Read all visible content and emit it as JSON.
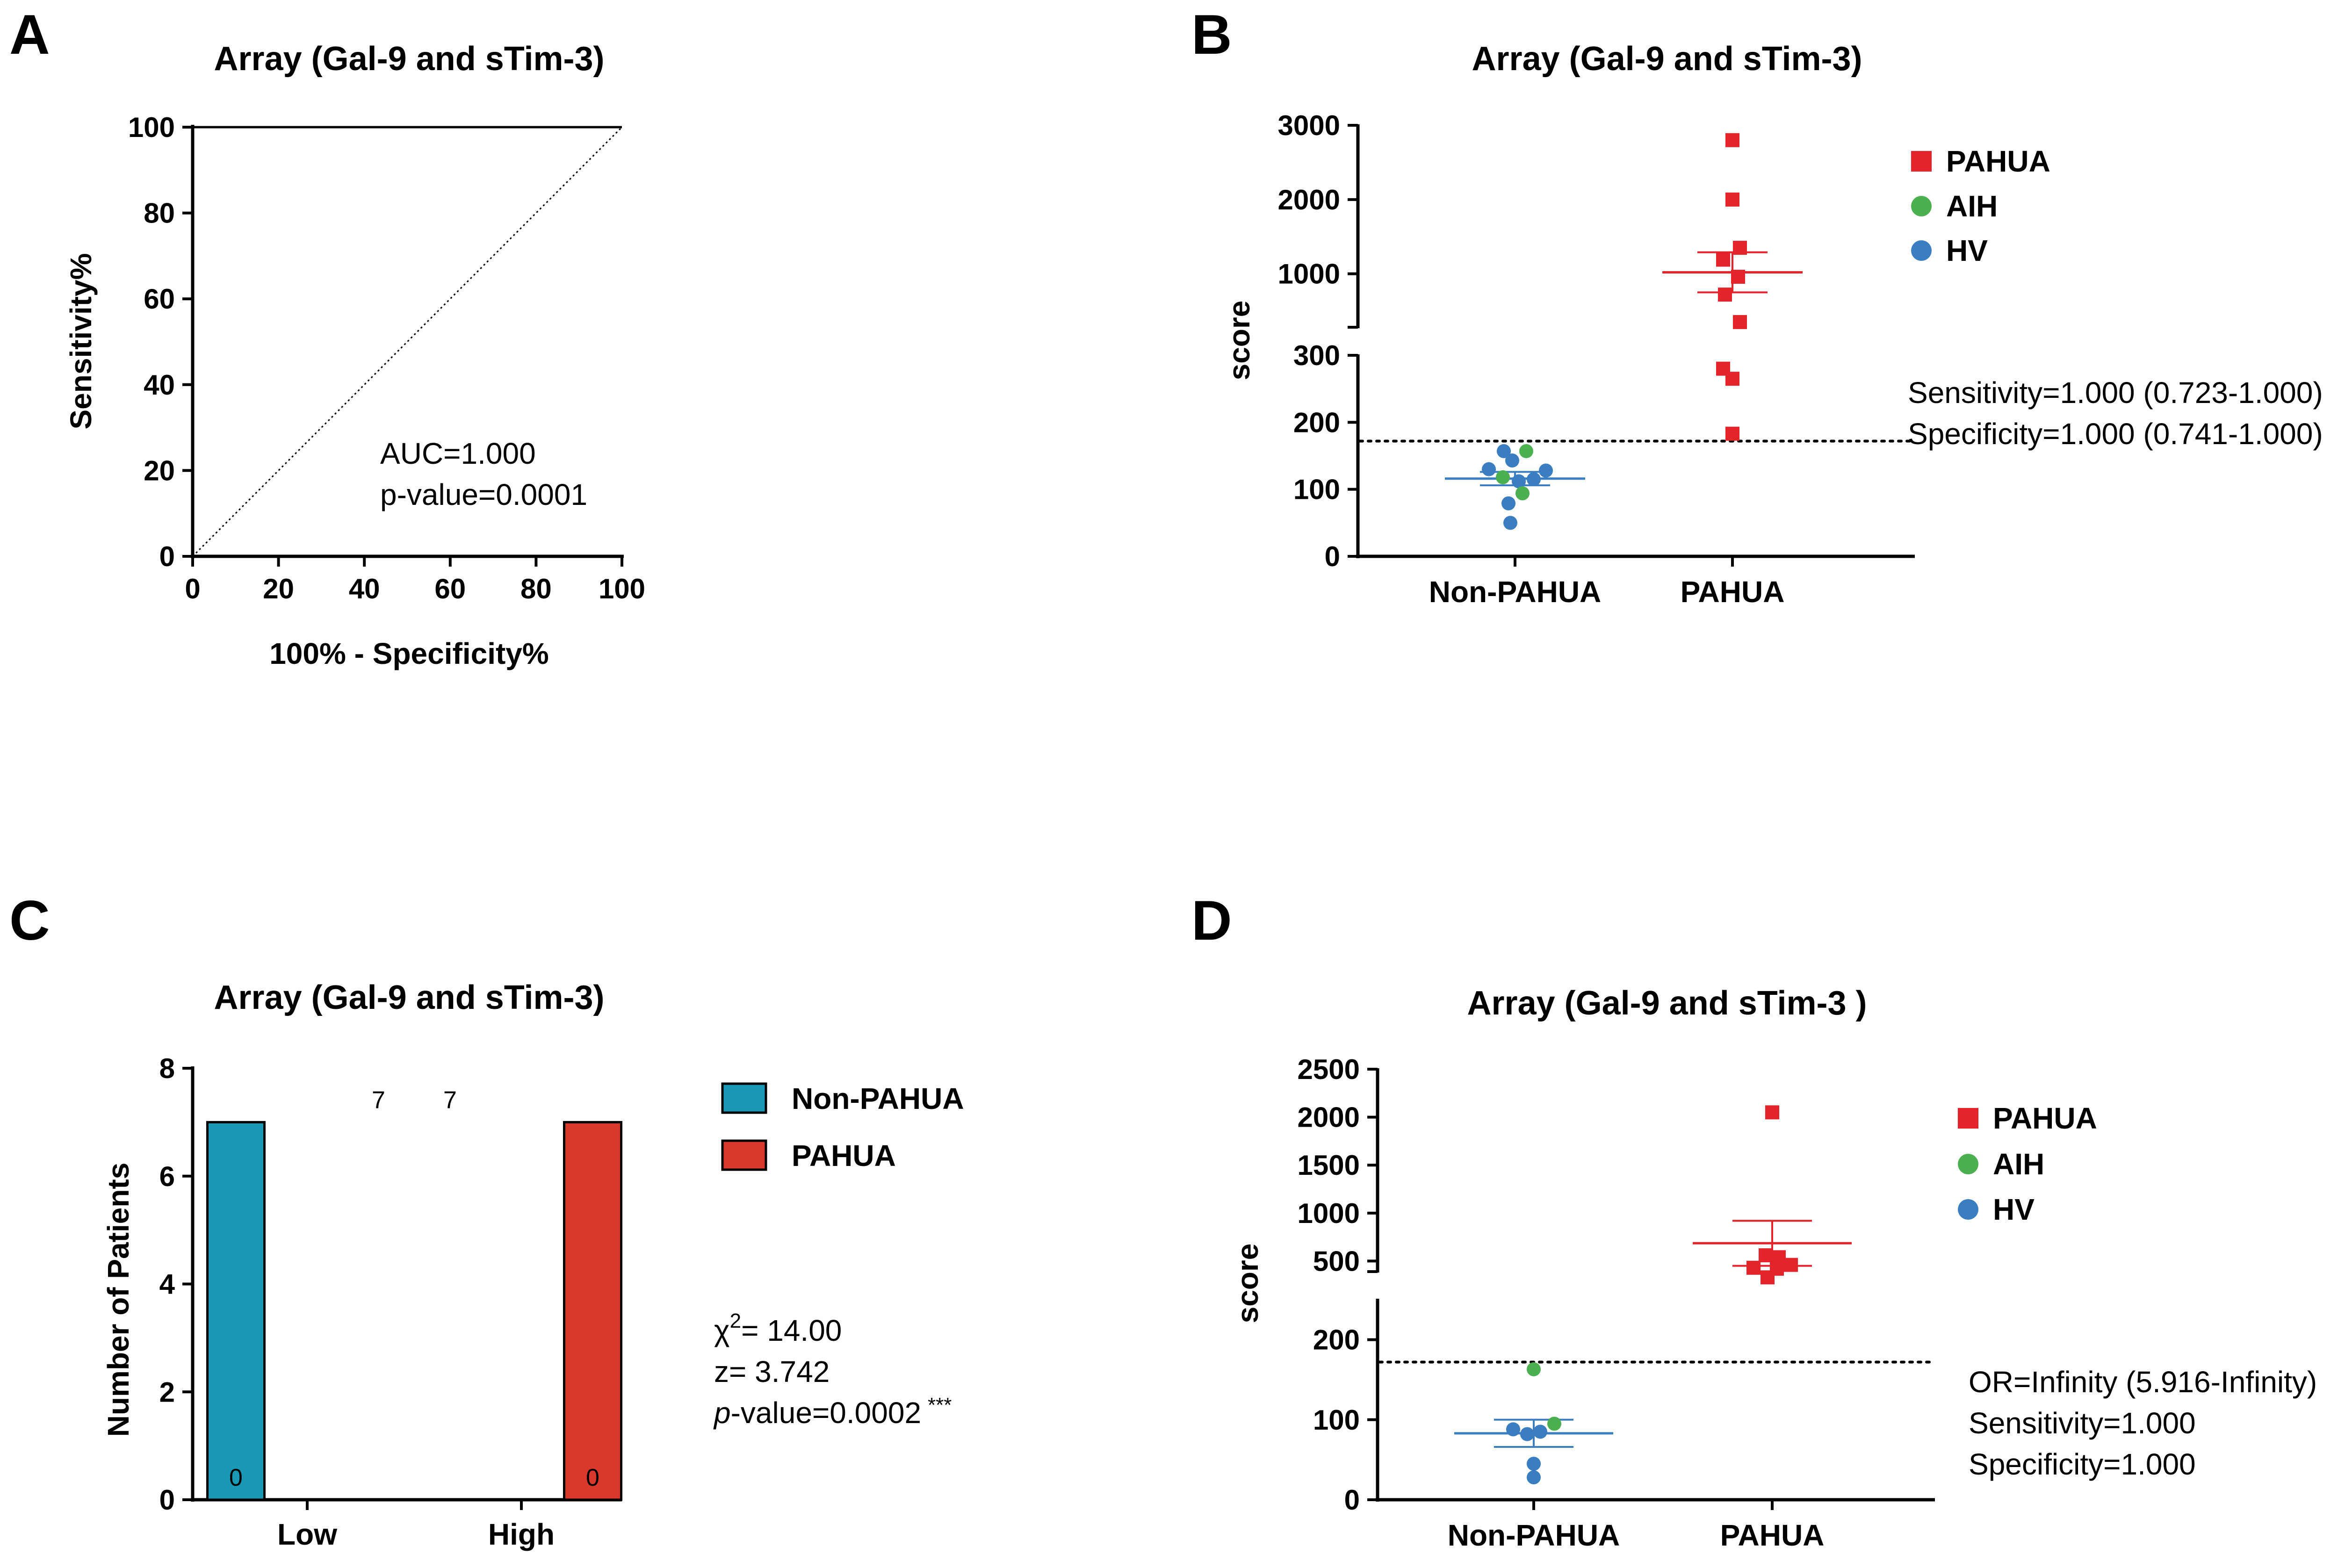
{
  "chart_data": [
    {
      "panel": "A",
      "type": "line",
      "title": "Array (Gal-9 and sTim-3)",
      "xlabel": "100% - Specificity%",
      "ylabel": "Sensitivity%",
      "xlim": [
        0,
        100
      ],
      "ylim": [
        0,
        100
      ],
      "xticks": [
        "0",
        "20",
        "40",
        "60",
        "80",
        "100"
      ],
      "yticks": [
        "0",
        "20",
        "40",
        "60",
        "80",
        "100"
      ],
      "series": [
        {
          "name": "ROC",
          "x": [
            0,
            0,
            100
          ],
          "y": [
            0,
            100,
            100
          ],
          "style": "solid"
        },
        {
          "name": "Reference",
          "x": [
            0,
            100
          ],
          "y": [
            0,
            100
          ],
          "style": "dotted"
        }
      ],
      "annotations": [
        "AUC=1.000",
        "p-value=0.0001"
      ]
    },
    {
      "panel": "B",
      "type": "scatter",
      "title": "Array (Gal-9 and sTim-3)",
      "ylabel": "score",
      "categories": [
        "Non-PAHUA",
        "PAHUA"
      ],
      "yticks_lower": [
        "0",
        "100",
        "200",
        "300"
      ],
      "yticks_upper": [
        "1000",
        "2000",
        "3000"
      ],
      "cutoff": 172,
      "legend": [
        {
          "name": "PAHUA",
          "color": "#e3242b",
          "marker": "square"
        },
        {
          "name": "AIH",
          "color": "#4caf50",
          "marker": "circle"
        },
        {
          "name": "HV",
          "color": "#3a7dc1",
          "marker": "circle"
        }
      ],
      "points": [
        {
          "group": "HV",
          "category": 0,
          "offset": -0.12,
          "y": 157
        },
        {
          "group": "AIH",
          "category": 0,
          "offset": 0.12,
          "y": 157
        },
        {
          "group": "HV",
          "category": 0,
          "offset": -0.28,
          "y": 130
        },
        {
          "group": "HV",
          "category": 0,
          "offset": -0.03,
          "y": 143
        },
        {
          "group": "HV",
          "category": 0,
          "offset": 0.33,
          "y": 128
        },
        {
          "group": "AIH",
          "category": 0,
          "offset": -0.13,
          "y": 118
        },
        {
          "group": "HV",
          "category": 0,
          "offset": 0.04,
          "y": 112
        },
        {
          "group": "HV",
          "category": 0,
          "offset": 0.2,
          "y": 115
        },
        {
          "group": "AIH",
          "category": 0,
          "offset": 0.08,
          "y": 94
        },
        {
          "group": "HV",
          "category": 0,
          "offset": -0.07,
          "y": 79
        },
        {
          "group": "HV",
          "category": 0,
          "offset": -0.05,
          "y": 50
        },
        {
          "group": "PAHUA",
          "category": 1,
          "offset": 0.0,
          "y": 2800
        },
        {
          "group": "PAHUA",
          "category": 1,
          "offset": 0.0,
          "y": 2000
        },
        {
          "group": "PAHUA",
          "category": 1,
          "offset": 0.08,
          "y": 1350
        },
        {
          "group": "PAHUA",
          "category": 1,
          "offset": -0.1,
          "y": 1190
        },
        {
          "group": "PAHUA",
          "category": 1,
          "offset": 0.06,
          "y": 960
        },
        {
          "group": "PAHUA",
          "category": 1,
          "offset": -0.08,
          "y": 720
        },
        {
          "group": "PAHUA",
          "category": 1,
          "offset": 0.08,
          "y": 350
        },
        {
          "group": "PAHUA",
          "category": 1,
          "offset": -0.1,
          "y": 280
        },
        {
          "group": "PAHUA",
          "category": 1,
          "offset": 0.0,
          "y": 265
        },
        {
          "group": "PAHUA",
          "category": 1,
          "offset": 0.0,
          "y": 183
        }
      ],
      "summary": [
        {
          "category": 0,
          "mean": 116,
          "sem_low": 106,
          "sem_high": 126,
          "color": "#3a7dc1"
        },
        {
          "category": 1,
          "mean": 1020,
          "sem_low": 750,
          "sem_high": 1290,
          "color": "#e3242b"
        }
      ],
      "annotations": [
        "Sensitivity=1.000 (0.723-1.000)",
        "Specificity=1.000 (0.741-1.000)"
      ]
    },
    {
      "panel": "C",
      "type": "bar",
      "title": "Array (Gal-9 and sTim-3)",
      "ylabel": "Number of Patients",
      "categories": [
        "Low",
        "High"
      ],
      "ylim": [
        0,
        8
      ],
      "yticks": [
        "0",
        "2",
        "4",
        "6",
        "8"
      ],
      "series": [
        {
          "name": "Non-PAHUA",
          "values": [
            7,
            0
          ],
          "color": "#1999b6"
        },
        {
          "name": "PAHUA",
          "values": [
            0,
            7
          ],
          "color": "#d9382d"
        }
      ],
      "value_labels": [
        {
          "text": "0",
          "value": 0
        },
        {
          "text": "7",
          "value": 7
        },
        {
          "text": "7",
          "value": 7
        },
        {
          "text": "0",
          "value": 0
        }
      ],
      "annotations": {
        "chi_prefix": "χ",
        "chi_sup": "2",
        "chi_value": "= 14.00",
        "z": "z= 3.742",
        "p_italic": "p",
        "p_rest": "-value=0.0002",
        "stars": "***"
      }
    },
    {
      "panel": "D",
      "type": "scatter",
      "title": "Array (Gal-9 and sTim-3 )",
      "ylabel": "score",
      "categories": [
        "Non-PAHUA",
        "PAHUA"
      ],
      "yticks_lower": [
        "0",
        "100",
        "200"
      ],
      "yticks_upper": [
        "500",
        "1000",
        "1500",
        "2000",
        "2500"
      ],
      "cutoff": 172,
      "legend": [
        {
          "name": "PAHUA",
          "color": "#e3242b",
          "marker": "square"
        },
        {
          "name": "AIH",
          "color": "#4caf50",
          "marker": "circle"
        },
        {
          "name": "HV",
          "color": "#3a7dc1",
          "marker": "circle"
        }
      ],
      "points": [
        {
          "group": "AIH",
          "category": 0,
          "offset": 0.0,
          "y": 163
        },
        {
          "group": "AIH",
          "category": 0,
          "offset": 0.22,
          "y": 95
        },
        {
          "group": "HV",
          "category": 0,
          "offset": -0.22,
          "y": 88
        },
        {
          "group": "HV",
          "category": 0,
          "offset": -0.07,
          "y": 82
        },
        {
          "group": "HV",
          "category": 0,
          "offset": 0.07,
          "y": 85
        },
        {
          "group": "HV",
          "category": 0,
          "offset": 0.0,
          "y": 45
        },
        {
          "group": "HV",
          "category": 0,
          "offset": 0.0,
          "y": 28
        },
        {
          "group": "PAHUA",
          "category": 1,
          "offset": 0.0,
          "y": 2050
        },
        {
          "group": "PAHUA",
          "category": 1,
          "offset": -0.07,
          "y": 560
        },
        {
          "group": "PAHUA",
          "category": 1,
          "offset": 0.07,
          "y": 540
        },
        {
          "group": "PAHUA",
          "category": 1,
          "offset": -0.2,
          "y": 430
        },
        {
          "group": "PAHUA",
          "category": 1,
          "offset": 0.2,
          "y": 460
        },
        {
          "group": "PAHUA",
          "category": 1,
          "offset": 0.05,
          "y": 420
        },
        {
          "group": "PAHUA",
          "category": 1,
          "offset": -0.05,
          "y": 330
        }
      ],
      "summary": [
        {
          "category": 0,
          "mean": 83,
          "sem_low": 66,
          "sem_high": 100,
          "color": "#3a7dc1"
        },
        {
          "category": 1,
          "mean": 686,
          "sem_low": 450,
          "sem_high": 920,
          "color": "#e3242b"
        }
      ],
      "annotations": [
        "OR=Infinity (5.916-Infinity)",
        "Sensitivity=1.000",
        "Specificity=1.000"
      ]
    }
  ],
  "panel_letters": [
    "A",
    "B",
    "C",
    "D"
  ]
}
